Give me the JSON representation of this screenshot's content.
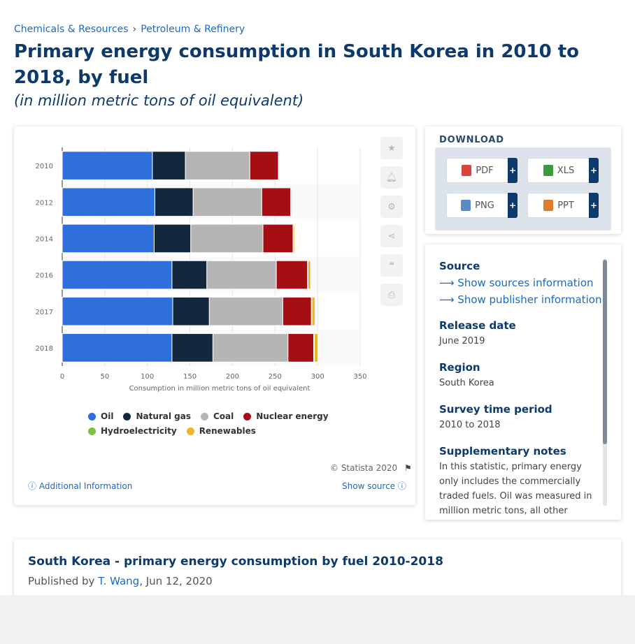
{
  "breadcrumb": {
    "items": [
      "Chemicals & Resources",
      "Petroleum & Refinery"
    ],
    "separator": "›"
  },
  "page_title": "Primary energy consumption in South Korea in 2010 to 2018, by fuel",
  "page_subtitle": "(in million metric tons of oil equivalent)",
  "tools": {
    "icons": [
      "star-icon",
      "bell-icon",
      "gear-icon",
      "share-icon",
      "quote-icon",
      "print-icon"
    ]
  },
  "download": {
    "title": "DOWNLOAD",
    "buttons": [
      {
        "label": "PDF",
        "color": "#d9453d"
      },
      {
        "label": "XLS",
        "color": "#3c9a3c"
      },
      {
        "label": "PNG",
        "color": "#5a8ac8"
      },
      {
        "label": "PPT",
        "color": "#e07b2a"
      }
    ],
    "plus": "+"
  },
  "info": {
    "source_label": "Source",
    "show_sources": "Show sources information",
    "show_publisher": "Show publisher information",
    "release_label": "Release date",
    "release_value": "June 2019",
    "region_label": "Region",
    "region_value": "South Korea",
    "survey_label": "Survey time period",
    "survey_value": "2010 to 2018",
    "notes_label": "Supplementary notes",
    "notes_value": "In this statistic, primary energy only includes the commercially traded fuels. Oil was measured in million metric tons, all other"
  },
  "chart_footer": {
    "copyright": "© Statista 2020",
    "additional_info": "Additional Information",
    "show_source": "Show source"
  },
  "report": {
    "title": "South Korea - primary energy consumption by fuel 2010-2018",
    "published_prefix": "Published by",
    "author": "T. Wang",
    "date": ", Jun 12, 2020"
  },
  "chart_data": {
    "type": "bar",
    "orientation": "horizontal",
    "stacked": true,
    "categories": [
      "2010",
      "2012",
      "2014",
      "2016",
      "2017",
      "2018"
    ],
    "series": [
      {
        "name": "Oil",
        "color": "#2f6fdb",
        "values": [
          105.9,
          108.8,
          108.0,
          128.9,
          129.8,
          128.9
        ]
      },
      {
        "name": "Natural gas",
        "color": "#14283d",
        "values": [
          38.7,
          45.0,
          43.0,
          41.0,
          43.0,
          48.1
        ]
      },
      {
        "name": "Coal",
        "color": "#b5b5b5",
        "values": [
          75.8,
          80.6,
          84.8,
          81.6,
          86.3,
          88.2
        ]
      },
      {
        "name": "Nuclear energy",
        "color": "#a50e12",
        "values": [
          33.6,
          34.0,
          35.4,
          36.7,
          33.6,
          30.2
        ]
      },
      {
        "name": "Hydroelectricity",
        "color": "#7cc242",
        "values": [
          0.8,
          0.8,
          0.6,
          0.6,
          0.6,
          0.7
        ]
      },
      {
        "name": "Renewables",
        "color": "#f0b429",
        "values": [
          0.9,
          1.1,
          1.3,
          3.0,
          3.6,
          4.3
        ]
      }
    ],
    "xlabel": "Consumption in million metric tons of oil equivalent",
    "ylabel": "",
    "xlim": [
      0,
      350
    ],
    "xticks": [
      0,
      50,
      100,
      150,
      200,
      250,
      300,
      350
    ],
    "grid": true,
    "legend": "bottom"
  }
}
